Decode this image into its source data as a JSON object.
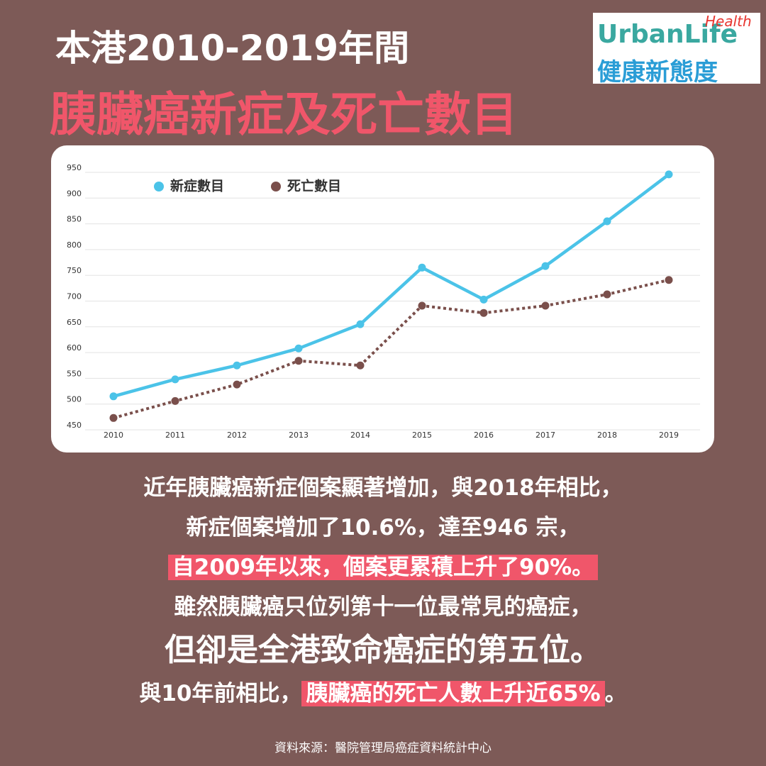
{
  "header": {
    "line1": "本港2010-2019年間",
    "line2": "胰臟癌新症及死亡數目"
  },
  "logo": {
    "brand": "UrbanLife",
    "tag": "Health",
    "slogan": "健康新態度"
  },
  "chart_data": {
    "type": "line",
    "categories": [
      "2010",
      "2011",
      "2012",
      "2013",
      "2014",
      "2015",
      "2016",
      "2017",
      "2018",
      "2019"
    ],
    "series": [
      {
        "name": "新症數目",
        "color": "#4bc3e8",
        "dash": false,
        "values": [
          515,
          548,
          575,
          608,
          655,
          765,
          703,
          768,
          855,
          946
        ]
      },
      {
        "name": "死亡數目",
        "color": "#7a4f4b",
        "dash": true,
        "values": [
          473,
          506,
          538,
          584,
          575,
          691,
          677,
          691,
          713,
          741
        ]
      }
    ],
    "ylim": [
      450,
      950
    ],
    "yticks": [
      450,
      500,
      550,
      600,
      650,
      700,
      750,
      800,
      850,
      900,
      950
    ],
    "grid": true,
    "legend": "top-left"
  },
  "body": {
    "lines": [
      [
        "近年胰臟癌新症個案顯著增加，與2018年相比，"
      ],
      [
        "新症個案增加了10.6%，達至946 宗，"
      ],
      [
        "自2009年以來，個案更累積上升了90%。"
      ],
      [
        "雖然胰臟癌只位列第十一位最常見的癌症，"
      ],
      [
        "但卻是全港致命癌症的第五位。"
      ],
      [
        "與10年前相比，",
        "胰臟癌的死亡人數上升近65%",
        "。"
      ]
    ]
  },
  "source": "資料來源：醫院管理局癌症資料統計中心"
}
